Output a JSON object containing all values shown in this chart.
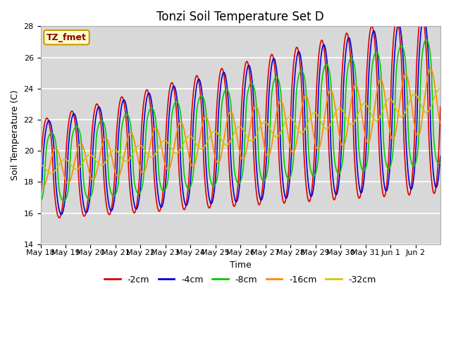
{
  "title": "Tonzi Soil Temperature Set D",
  "xlabel": "Time",
  "ylabel": "Soil Temperature (C)",
  "ylim": [
    14,
    28
  ],
  "background_color": "#d8d8d8",
  "plot_bg_color": "#d8d8d8",
  "legend_bg": "#ffffff",
  "annotation_text": "TZ_fmet",
  "annotation_bg": "#ffffcc",
  "annotation_border": "#cc9900",
  "legend_labels": [
    "-2cm",
    "-4cm",
    "-8cm",
    "-16cm",
    "-32cm"
  ],
  "legend_colors": [
    "#dd0000",
    "#0000dd",
    "#00cc00",
    "#ff8800",
    "#cccc00"
  ],
  "xtick_labels": [
    "May 18",
    "May 19",
    "May 20",
    "May 21",
    "May 22",
    "May 23",
    "May 24",
    "May 25",
    "May 26",
    "May 27",
    "May 28",
    "May 29",
    "May 30",
    "May 31",
    "Jun 1",
    "Jun 2"
  ],
  "title_fontsize": 12,
  "axis_fontsize": 9,
  "tick_fontsize": 8
}
